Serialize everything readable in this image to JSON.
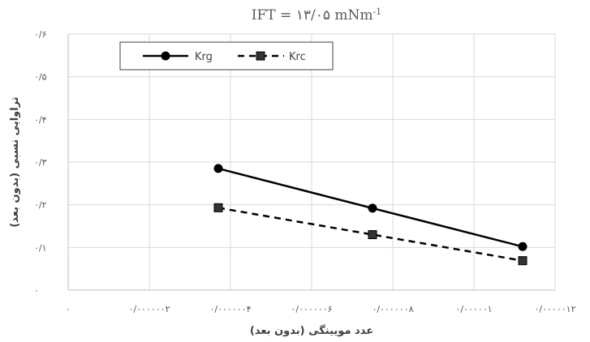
{
  "chart_data": {
    "type": "line",
    "title": "IFT = ۱۳/۰۵ mNm",
    "title_sup": "-1",
    "xlabel": "عدد مویینگی (بدون بعد)",
    "ylabel": "تراوایی نسبی (بدون بعد)",
    "xlim": [
      0,
      1.2e-06
    ],
    "ylim": [
      0,
      0.6
    ],
    "x_ticks": [
      0,
      2e-07,
      4e-07,
      6e-07,
      8e-07,
      1e-06,
      1.2e-06
    ],
    "x_tick_labels": [
      "۰",
      "۰/۰۰۰۰۰۰۲",
      "۰/۰۰۰۰۰۰۴",
      "۰/۰۰۰۰۰۰۶",
      "۰/۰۰۰۰۰۰۸",
      "۰/۰۰۰۰۰۱",
      "۰/۰۰۰۰۰۱۲"
    ],
    "y_ticks": [
      0,
      0.1,
      0.2,
      0.3,
      0.4,
      0.5,
      0.6
    ],
    "y_tick_labels": [
      "۰",
      "۰/۱",
      "۰/۲",
      "۰/۳",
      "۰/۴",
      "۰/۵",
      "۰/۶"
    ],
    "grid": true,
    "legend_position": "top-left",
    "series": [
      {
        "name": "Krg",
        "marker": "circle",
        "line": "solid",
        "color": "#000000",
        "x": [
          3.7e-07,
          7.5e-07,
          1.12e-06
        ],
        "y": [
          0.285,
          0.192,
          0.102
        ]
      },
      {
        "name": "Krc",
        "marker": "square",
        "line": "dashed",
        "color": "#000000",
        "x": [
          3.7e-07,
          7.5e-07,
          1.12e-06
        ],
        "y": [
          0.193,
          0.13,
          0.069
        ]
      }
    ]
  }
}
